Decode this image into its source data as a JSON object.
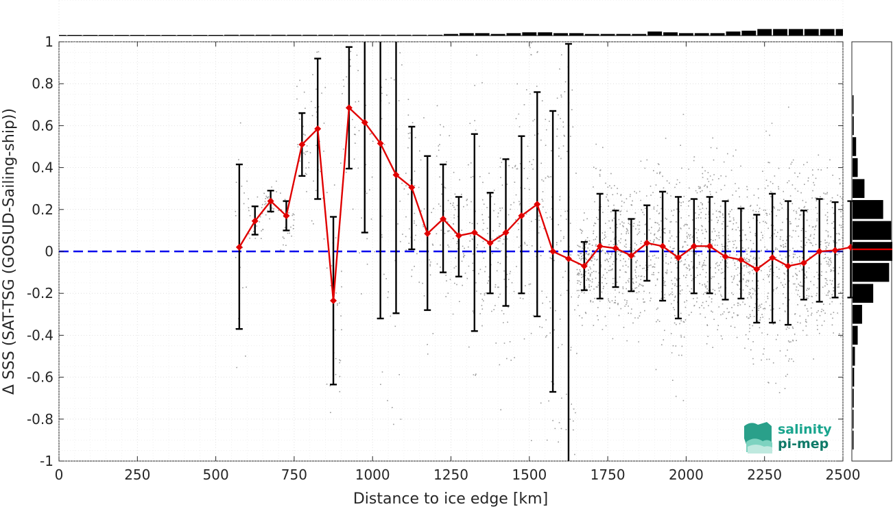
{
  "chart_data": {
    "type": "line",
    "xlabel": "Distance to ice edge [km]",
    "ylabel": "Δ SSS (SAT-TSG (GOSUD-Sailing-ship))",
    "xlim": [
      0,
      2500
    ],
    "ylim": [
      -1,
      1
    ],
    "x_ticks": [
      "0",
      "250",
      "500",
      "750",
      "1000",
      "1250",
      "1500",
      "1750",
      "2000",
      "2250",
      "2500"
    ],
    "y_ticks": [
      "-1",
      "-0.8",
      "-0.6",
      "-0.4",
      "-0.2",
      "0",
      "0.2",
      "0.4",
      "0.6",
      "0.8",
      "1"
    ],
    "grid": true,
    "reference_line": {
      "y": 0,
      "style": "dashed",
      "color": "#0000ee"
    },
    "colors": {
      "mean_line": "#e00000",
      "error_bars": "#000000",
      "scatter": "#7f7f7f",
      "histogram": "#000000"
    },
    "series": [
      {
        "x": [
          575,
          625,
          675,
          725,
          775,
          825,
          875,
          925,
          975,
          1025,
          1075,
          1125,
          1175,
          1225,
          1275,
          1325,
          1375,
          1425,
          1475,
          1525,
          1575,
          1625,
          1675,
          1725,
          1775,
          1825,
          1875,
          1925,
          1975,
          2025,
          2075,
          2125,
          2175,
          2225,
          2275,
          2325,
          2375,
          2425,
          2475,
          2525
        ],
        "mean": [
          0.02,
          0.145,
          0.24,
          0.17,
          0.51,
          0.585,
          -0.235,
          0.685,
          0.615,
          0.515,
          0.365,
          0.305,
          0.085,
          0.155,
          0.075,
          0.09,
          0.04,
          0.09,
          0.17,
          0.225,
          0.0,
          -0.035,
          -0.07,
          0.025,
          0.015,
          -0.02,
          0.04,
          0.025,
          -0.03,
          0.025,
          0.025,
          -0.025,
          -0.04,
          -0.085,
          -0.03,
          -0.07,
          -0.055,
          0.0,
          0.005,
          0.02
        ],
        "lower": [
          -0.37,
          0.08,
          0.19,
          0.1,
          0.36,
          0.25,
          -0.635,
          0.395,
          0.09,
          -0.32,
          -0.295,
          0.01,
          -0.28,
          -0.1,
          -0.12,
          -0.38,
          -0.2,
          -0.26,
          -0.2,
          -0.31,
          -0.67,
          -1.0,
          -0.185,
          -0.225,
          -0.17,
          -0.19,
          -0.14,
          -0.235,
          -0.32,
          -0.2,
          -0.2,
          -0.23,
          -0.225,
          -0.34,
          -0.34,
          -0.35,
          -0.23,
          -0.24,
          -0.22,
          -0.22
        ],
        "upper": [
          0.415,
          0.215,
          0.29,
          0.24,
          0.66,
          0.92,
          0.165,
          0.975,
          1.0,
          1.0,
          1.0,
          0.595,
          0.455,
          0.415,
          0.26,
          0.56,
          0.28,
          0.44,
          0.55,
          0.76,
          0.67,
          0.99,
          0.045,
          0.275,
          0.195,
          0.155,
          0.22,
          0.285,
          0.26,
          0.25,
          0.26,
          0.24,
          0.205,
          0.175,
          0.275,
          0.24,
          0.195,
          0.25,
          0.235,
          0.24
        ]
      }
    ],
    "top_histogram": {
      "bin_centers": [
        0,
        50,
        100,
        150,
        200,
        250,
        300,
        350,
        400,
        450,
        500,
        550,
        600,
        650,
        700,
        750,
        800,
        850,
        900,
        950,
        1000,
        1050,
        1100,
        1150,
        1200,
        1250,
        1300,
        1350,
        1400,
        1450,
        1500,
        1550,
        1600,
        1650,
        1700,
        1750,
        1800,
        1850,
        1900,
        1950,
        2000,
        2050,
        2100,
        2150,
        2200,
        2250,
        2300,
        2350,
        2400,
        2450,
        2500
      ],
      "relative_counts": [
        0.05,
        0.05,
        0.05,
        0.05,
        0.05,
        0.05,
        0.05,
        0.05,
        0.05,
        0.05,
        0.05,
        0.1,
        0.1,
        0.1,
        0.1,
        0.1,
        0.1,
        0.1,
        0.1,
        0.1,
        0.1,
        0.1,
        0.1,
        0.1,
        0.1,
        0.2,
        0.3,
        0.3,
        0.2,
        0.3,
        0.4,
        0.4,
        0.3,
        0.3,
        0.2,
        0.2,
        0.2,
        0.2,
        0.5,
        0.4,
        0.3,
        0.3,
        0.3,
        0.5,
        0.6,
        0.8,
        0.8,
        0.8,
        0.8,
        0.8,
        0.8
      ]
    },
    "right_histogram": {
      "bin_centers": [
        -0.9,
        -0.8,
        -0.7,
        -0.6,
        -0.5,
        -0.4,
        -0.3,
        -0.2,
        -0.1,
        0.0,
        0.1,
        0.2,
        0.3,
        0.4,
        0.5,
        0.6,
        0.7
      ],
      "relative_counts": [
        0.01,
        0.02,
        0.03,
        0.04,
        0.06,
        0.13,
        0.24,
        0.52,
        0.92,
        1.0,
        0.97,
        0.77,
        0.3,
        0.13,
        0.09,
        0.03,
        0.01
      ],
      "mean_marker": 0.01
    },
    "scatter_description": "dense gray scatter points of individual differences, concentrated beyond 1200 km"
  },
  "logo": {
    "line1": "salinity",
    "line2": "pi-mep",
    "color1": "#1aa58e",
    "color2": "#0f7a68",
    "icon_color": "#3cb8a0"
  }
}
